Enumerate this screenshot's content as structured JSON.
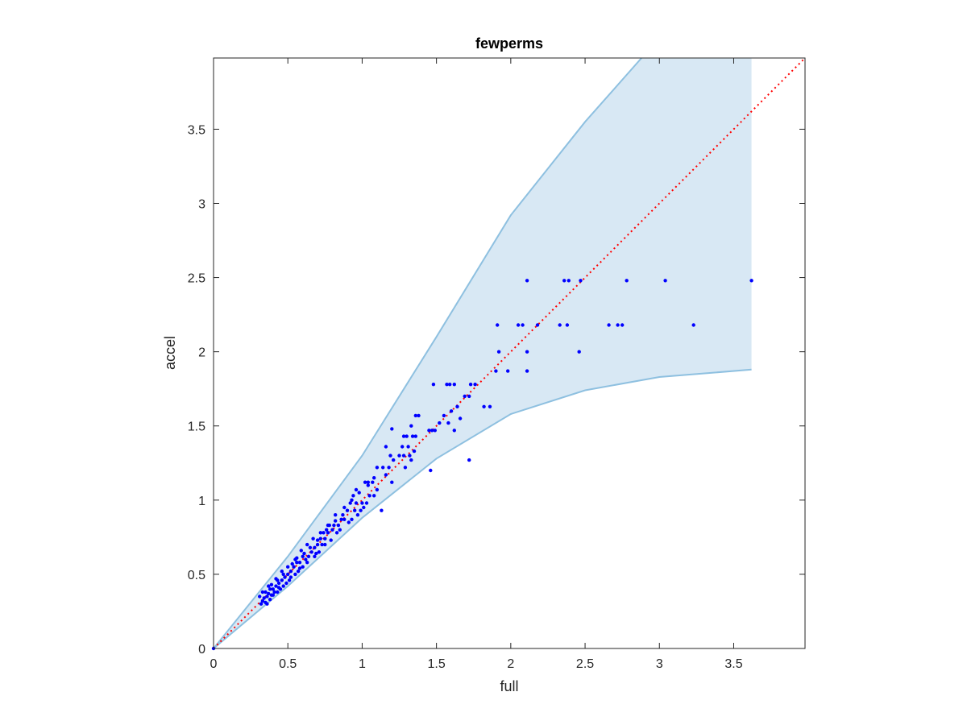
{
  "chart_data": {
    "type": "scatter",
    "title": "fewperms",
    "xlabel": "full",
    "ylabel": "accel",
    "xlim": [
      0,
      3.98
    ],
    "ylim": [
      0,
      3.98
    ],
    "xticks": [
      0,
      0.5,
      1,
      1.5,
      2,
      2.5,
      3,
      3.5
    ],
    "yticks": [
      0,
      0.5,
      1,
      1.5,
      2,
      2.5,
      3,
      3.5
    ],
    "xtick_labels": [
      "0",
      "0.5",
      "1",
      "1.5",
      "2",
      "2.5",
      "3",
      "3.5"
    ],
    "ytick_labels": [
      "0",
      "0.5",
      "1",
      "1.5",
      "2",
      "2.5",
      "3",
      "3.5"
    ],
    "grid": false,
    "colors": {
      "points": "#0000ff",
      "band_fill": "#d8e8f4",
      "band_edge": "#8ec0e0",
      "identity_line": "#ff0000",
      "axes": "#262626"
    },
    "band": {
      "x_end": 3.62,
      "upper": [
        [
          0,
          0
        ],
        [
          0.5,
          0.62
        ],
        [
          1,
          1.3
        ],
        [
          1.5,
          2.1
        ],
        [
          2,
          2.92
        ],
        [
          2.5,
          3.55
        ],
        [
          2.88,
          3.98
        ],
        [
          3.62,
          3.98
        ]
      ],
      "lower": [
        [
          0,
          0
        ],
        [
          0.5,
          0.42
        ],
        [
          1,
          0.88
        ],
        [
          1.5,
          1.28
        ],
        [
          2,
          1.58
        ],
        [
          2.5,
          1.74
        ],
        [
          3,
          1.83
        ],
        [
          3.62,
          1.88
        ]
      ]
    },
    "identity_line": {
      "from": [
        0,
        0
      ],
      "to": [
        3.98,
        3.98
      ]
    },
    "points": [
      [
        3.62,
        2.48
      ],
      [
        3.04,
        2.48
      ],
      [
        2.78,
        2.48
      ],
      [
        2.47,
        2.48
      ],
      [
        2.39,
        2.48
      ],
      [
        2.36,
        2.48
      ],
      [
        2.11,
        2.48
      ],
      [
        3.23,
        2.18
      ],
      [
        2.75,
        2.18
      ],
      [
        2.72,
        2.18
      ],
      [
        2.66,
        2.18
      ],
      [
        2.38,
        2.18
      ],
      [
        2.33,
        2.18
      ],
      [
        2.18,
        2.18
      ],
      [
        2.08,
        2.18
      ],
      [
        2.05,
        2.18
      ],
      [
        1.91,
        2.18
      ],
      [
        2.46,
        2.0
      ],
      [
        2.11,
        2.0
      ],
      [
        1.92,
        2.0
      ],
      [
        1.98,
        1.87
      ],
      [
        2.11,
        1.87
      ],
      [
        1.9,
        1.87
      ],
      [
        1.76,
        1.78
      ],
      [
        1.73,
        1.78
      ],
      [
        1.62,
        1.78
      ],
      [
        1.59,
        1.78
      ],
      [
        1.57,
        1.78
      ],
      [
        1.48,
        1.78
      ],
      [
        1.72,
        1.7
      ],
      [
        1.69,
        1.7
      ],
      [
        1.64,
        1.63
      ],
      [
        1.6,
        1.6
      ],
      [
        1.82,
        1.63
      ],
      [
        1.86,
        1.63
      ],
      [
        1.55,
        1.57
      ],
      [
        1.52,
        1.52
      ],
      [
        1.58,
        1.52
      ],
      [
        1.49,
        1.47
      ],
      [
        1.45,
        1.47
      ],
      [
        1.47,
        1.47
      ],
      [
        1.62,
        1.47
      ],
      [
        1.66,
        1.55
      ],
      [
        1.72,
        1.27
      ],
      [
        1.46,
        1.2
      ],
      [
        1.36,
        1.57
      ],
      [
        1.38,
        1.57
      ],
      [
        1.33,
        1.5
      ],
      [
        1.3,
        1.43
      ],
      [
        1.28,
        1.43
      ],
      [
        1.34,
        1.43
      ],
      [
        1.36,
        1.43
      ],
      [
        1.31,
        1.36
      ],
      [
        1.27,
        1.36
      ],
      [
        1.25,
        1.3
      ],
      [
        1.28,
        1.3
      ],
      [
        1.32,
        1.3
      ],
      [
        1.33,
        1.27
      ],
      [
        1.29,
        1.22
      ],
      [
        1.35,
        1.33
      ],
      [
        1.2,
        1.48
      ],
      [
        1.16,
        1.36
      ],
      [
        1.19,
        1.3
      ],
      [
        1.21,
        1.27
      ],
      [
        1.18,
        1.22
      ],
      [
        1.14,
        1.22
      ],
      [
        1.16,
        1.17
      ],
      [
        1.2,
        1.12
      ],
      [
        1.13,
        0.93
      ],
      [
        1.1,
        1.22
      ],
      [
        1.07,
        1.12
      ],
      [
        1.04,
        1.12
      ],
      [
        1.02,
        1.12
      ],
      [
        1.1,
        1.07
      ],
      [
        1.05,
        1.03
      ],
      [
        1.08,
        1.03
      ],
      [
        1.03,
        0.98
      ],
      [
        1.0,
        0.98
      ],
      [
        0.96,
        1.07
      ],
      [
        0.94,
        1.03
      ],
      [
        0.92,
        0.98
      ],
      [
        0.96,
        0.98
      ],
      [
        0.99,
        0.93
      ],
      [
        0.95,
        0.93
      ],
      [
        0.9,
        0.93
      ],
      [
        0.93,
        0.87
      ],
      [
        0.88,
        0.87
      ],
      [
        0.86,
        0.87
      ],
      [
        0.84,
        0.83
      ],
      [
        0.81,
        0.83
      ],
      [
        0.78,
        0.83
      ],
      [
        0.8,
        0.8
      ],
      [
        0.77,
        0.78
      ],
      [
        0.74,
        0.78
      ],
      [
        0.83,
        0.78
      ],
      [
        0.72,
        0.74
      ],
      [
        0.75,
        0.74
      ],
      [
        0.7,
        0.7
      ],
      [
        0.73,
        0.7
      ],
      [
        0.68,
        0.68
      ],
      [
        0.71,
        0.65
      ],
      [
        0.66,
        0.65
      ],
      [
        0.64,
        0.62
      ],
      [
        0.68,
        0.62
      ],
      [
        0.62,
        0.6
      ],
      [
        0.6,
        0.62
      ],
      [
        0.58,
        0.58
      ],
      [
        0.56,
        0.58
      ],
      [
        0.6,
        0.55
      ],
      [
        0.54,
        0.55
      ],
      [
        0.57,
        0.52
      ],
      [
        0.52,
        0.52
      ],
      [
        0.55,
        0.5
      ],
      [
        0.5,
        0.5
      ],
      [
        0.48,
        0.48
      ],
      [
        0.51,
        0.46
      ],
      [
        0.46,
        0.46
      ],
      [
        0.49,
        0.44
      ],
      [
        0.44,
        0.44
      ],
      [
        0.47,
        0.42
      ],
      [
        0.42,
        0.42
      ],
      [
        0.45,
        0.4
      ],
      [
        0.4,
        0.4
      ],
      [
        0.38,
        0.4
      ],
      [
        0.43,
        0.38
      ],
      [
        0.37,
        0.37
      ],
      [
        0.4,
        0.36
      ],
      [
        0.36,
        0.35
      ],
      [
        0.34,
        0.34
      ],
      [
        0.38,
        0.33
      ],
      [
        0.33,
        0.32
      ],
      [
        0.35,
        0.31
      ],
      [
        0.32,
        0.3
      ],
      [
        0.36,
        0.3
      ],
      [
        0.39,
        0.36
      ],
      [
        0.41,
        0.38
      ],
      [
        0.44,
        0.41
      ],
      [
        0.52,
        0.48
      ],
      [
        0.58,
        0.54
      ],
      [
        0.63,
        0.58
      ],
      [
        0.69,
        0.64
      ],
      [
        0.75,
        0.7
      ],
      [
        0.79,
        0.73
      ],
      [
        0.85,
        0.8
      ],
      [
        0.91,
        0.85
      ],
      [
        0.97,
        0.9
      ],
      [
        1.01,
        0.95
      ],
      [
        0.87,
        0.9
      ],
      [
        0.82,
        0.86
      ],
      [
        0.76,
        0.8
      ],
      [
        0.7,
        0.73
      ],
      [
        0.65,
        0.68
      ],
      [
        0.61,
        0.64
      ],
      [
        0.56,
        0.61
      ],
      [
        0.53,
        0.57
      ],
      [
        0.47,
        0.5
      ],
      [
        0.43,
        0.46
      ],
      [
        0.39,
        0.43
      ],
      [
        0.35,
        0.38
      ],
      [
        0.31,
        0.35
      ],
      [
        0.33,
        0.38
      ],
      [
        0.37,
        0.42
      ],
      [
        0.42,
        0.47
      ],
      [
        0.46,
        0.52
      ],
      [
        0.5,
        0.55
      ],
      [
        0.55,
        0.6
      ],
      [
        0.59,
        0.66
      ],
      [
        0.63,
        0.7
      ],
      [
        0.67,
        0.74
      ],
      [
        0.72,
        0.78
      ],
      [
        0.77,
        0.83
      ],
      [
        0.82,
        0.9
      ],
      [
        0.88,
        0.95
      ],
      [
        0.93,
        1.0
      ],
      [
        0.98,
        1.05
      ],
      [
        1.04,
        1.1
      ],
      [
        1.08,
        1.15
      ],
      [
        0.0,
        0.0
      ]
    ]
  }
}
